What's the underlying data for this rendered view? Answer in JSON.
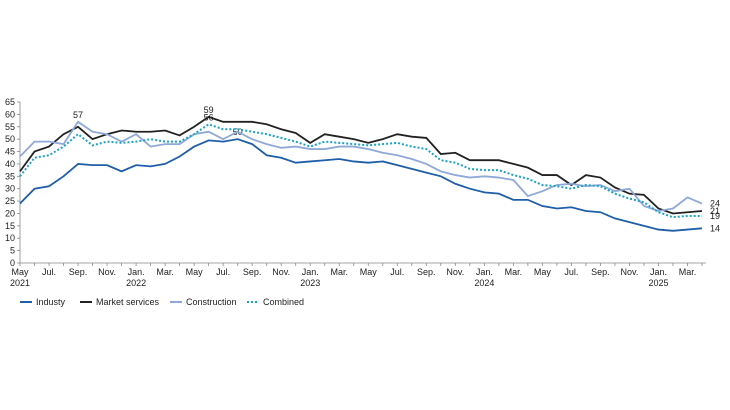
{
  "chart_data": {
    "type": "line",
    "categories": [
      "May 2021",
      null,
      "Jul.",
      null,
      "Sep.",
      null,
      "Nov.",
      null,
      "Jan. 2022",
      null,
      "Mar.",
      null,
      "May",
      null,
      "Jul.",
      null,
      "Sep.",
      null,
      "Nov.",
      null,
      "Jan. 2023",
      null,
      "Mar.",
      null,
      "May",
      null,
      "Jul.",
      null,
      "Sep.",
      null,
      "Nov.",
      null,
      "Jan. 2024",
      null,
      "Mar.",
      null,
      "May",
      null,
      "Jul.",
      null,
      "Sep.",
      null,
      "Nov.",
      null,
      "Jan. 2025",
      null,
      "Mar.",
      null
    ],
    "ylim": [
      0,
      65
    ],
    "yticks": [
      0,
      5,
      10,
      15,
      20,
      25,
      30,
      35,
      40,
      45,
      50,
      55,
      60,
      65
    ],
    "grid": false,
    "legend": "bottom",
    "series": [
      {
        "name": "Industy",
        "color": "#1f5ea8",
        "style": "solid",
        "values": [
          24,
          30,
          31,
          35,
          40,
          39.5,
          39.5,
          37,
          39.5,
          39,
          40,
          43,
          47,
          49.5,
          49,
          50,
          48,
          43.5,
          42.5,
          40.5,
          41,
          41.5,
          42,
          41,
          40.5,
          41,
          39.5,
          38,
          36.5,
          35,
          32,
          30,
          28.5,
          28,
          25.5,
          25.5,
          23,
          22,
          22.5,
          21,
          20.5,
          18,
          16.5,
          15,
          13.5,
          13,
          13.5,
          14
        ],
        "value_labels": [
          null,
          null,
          null,
          null,
          null,
          null,
          null,
          null,
          null,
          null,
          null,
          null,
          null,
          null,
          null,
          "50",
          null,
          null,
          null,
          null,
          null,
          null,
          null,
          null,
          null,
          null,
          null,
          null,
          null,
          null,
          null,
          null,
          null,
          null,
          null,
          null,
          null,
          null,
          null,
          null,
          null,
          null,
          null,
          null,
          null,
          null,
          null,
          "14"
        ]
      },
      {
        "name": "Market services",
        "color": "#222222",
        "style": "solid",
        "values": [
          37,
          45,
          47,
          52,
          55,
          50,
          52,
          53.5,
          53,
          53,
          53.5,
          51.5,
          55,
          59,
          57,
          57,
          57,
          56,
          54,
          52.5,
          48.5,
          52,
          51,
          50,
          48.5,
          50,
          52,
          51,
          50.5,
          44,
          44.5,
          41.5,
          41.5,
          41.5,
          40,
          38.5,
          35.5,
          35.5,
          31.5,
          35.5,
          34.5,
          30.5,
          28,
          27.5,
          22,
          20,
          20.5,
          21
        ],
        "value_labels": [
          null,
          null,
          null,
          null,
          null,
          null,
          null,
          null,
          null,
          null,
          null,
          null,
          null,
          "59",
          null,
          null,
          null,
          null,
          null,
          null,
          null,
          null,
          null,
          null,
          null,
          null,
          null,
          null,
          null,
          null,
          null,
          null,
          null,
          null,
          null,
          null,
          null,
          null,
          null,
          null,
          null,
          null,
          null,
          null,
          null,
          null,
          null,
          "21"
        ]
      },
      {
        "name": "Construction",
        "color": "#8fa8d8",
        "style": "solid",
        "values": [
          43,
          49,
          49,
          48,
          57,
          53,
          52,
          49,
          52,
          47,
          48,
          48,
          52,
          53,
          50,
          53,
          50,
          48,
          46.5,
          47,
          46,
          46,
          47,
          47,
          46,
          44.5,
          43.5,
          42,
          40,
          37,
          35.5,
          34.5,
          35,
          34.5,
          33.5,
          27,
          29,
          31.5,
          32,
          31,
          31.5,
          29,
          30,
          23,
          21,
          22,
          26.5,
          24
        ],
        "value_labels": [
          null,
          null,
          null,
          null,
          "57",
          null,
          null,
          null,
          null,
          null,
          null,
          null,
          null,
          null,
          null,
          null,
          null,
          null,
          null,
          null,
          null,
          null,
          null,
          null,
          null,
          null,
          null,
          null,
          null,
          null,
          null,
          null,
          null,
          null,
          null,
          null,
          null,
          null,
          null,
          null,
          null,
          null,
          null,
          null,
          null,
          null,
          null,
          "24"
        ]
      },
      {
        "name": "Combined",
        "color": "#1ba3c6",
        "style": "dotted",
        "values": [
          35,
          42.5,
          43.5,
          47,
          52,
          47.5,
          49,
          48.5,
          49,
          50,
          49,
          49,
          52,
          56,
          54,
          54,
          53,
          52,
          50.5,
          49,
          47,
          49,
          48.5,
          48,
          47.5,
          48,
          48.5,
          47,
          46,
          41.5,
          40.5,
          38,
          37.5,
          37.5,
          35.5,
          34,
          31.5,
          31,
          30,
          31.5,
          31,
          28,
          26,
          24.5,
          20.5,
          18.5,
          19,
          19
        ],
        "value_labels": [
          null,
          null,
          null,
          null,
          null,
          null,
          null,
          null,
          null,
          null,
          null,
          null,
          null,
          "56",
          null,
          null,
          null,
          null,
          null,
          null,
          null,
          null,
          null,
          null,
          null,
          null,
          null,
          null,
          null,
          null,
          null,
          null,
          null,
          null,
          null,
          null,
          null,
          null,
          null,
          null,
          null,
          null,
          null,
          null,
          null,
          null,
          null,
          "19"
        ]
      }
    ]
  }
}
